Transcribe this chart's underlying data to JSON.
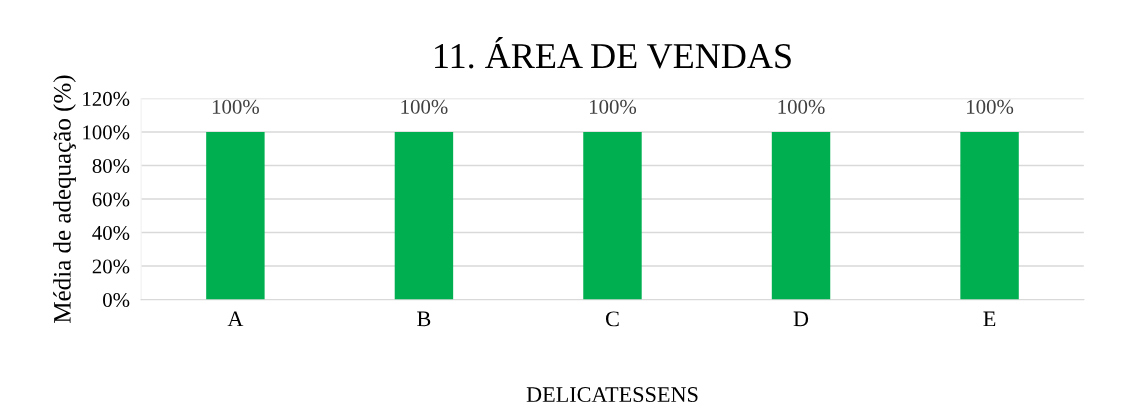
{
  "chart_data": {
    "type": "bar",
    "title": "11. ÁREA DE VENDAS",
    "xlabel": "DELICATESSENS",
    "ylabel": "Média de adequação (%)",
    "categories": [
      "A",
      "B",
      "C",
      "D",
      "E"
    ],
    "values": [
      100,
      100,
      100,
      100,
      100
    ],
    "value_labels": [
      "100%",
      "100%",
      "100%",
      "100%",
      "100%"
    ],
    "color": "#00b050",
    "ylim": [
      0,
      120
    ],
    "yticks": [
      {
        "value": 0,
        "label": "0%"
      },
      {
        "value": 20,
        "label": "20%"
      },
      {
        "value": 40,
        "label": "40%"
      },
      {
        "value": 60,
        "label": "60%"
      },
      {
        "value": 80,
        "label": "80%"
      },
      {
        "value": 100,
        "label": "100%"
      },
      {
        "value": 120,
        "label": "120%"
      }
    ],
    "grid": "y",
    "legend": false
  }
}
